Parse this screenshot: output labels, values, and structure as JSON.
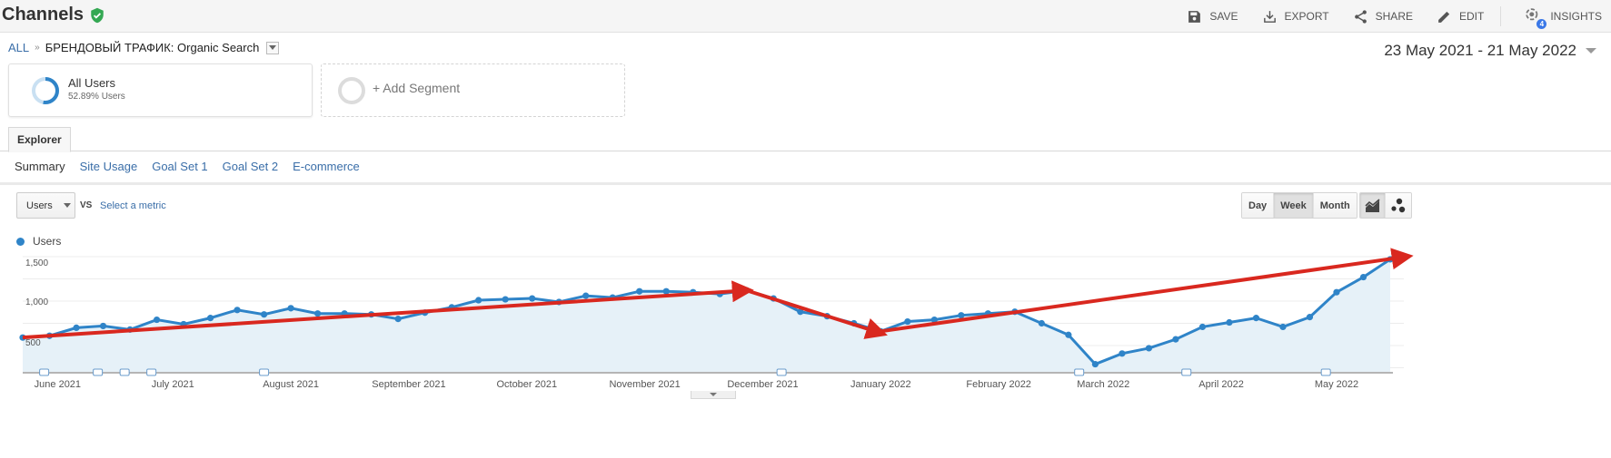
{
  "header": {
    "title": "Channels",
    "actions": [
      {
        "label": "SAVE",
        "icon": "save-icon"
      },
      {
        "label": "EXPORT",
        "icon": "export-icon"
      },
      {
        "label": "SHARE",
        "icon": "share-icon"
      },
      {
        "label": "EDIT",
        "icon": "edit-icon"
      },
      {
        "label": "INSIGHTS",
        "icon": "insights-icon",
        "badge": "4"
      }
    ]
  },
  "breadcrumb": {
    "root": "ALL",
    "separator": "»",
    "current": "БРЕНДОВЫЙ ТРАФИК: Organic Search"
  },
  "date_range": "23 May 2021 - 21 May 2022",
  "segments": {
    "active": {
      "name": "All Users",
      "sub": "52.89% Users"
    },
    "add_label": "+ Add Segment"
  },
  "tabs": [
    {
      "label": "Explorer",
      "active": true
    }
  ],
  "subtabs": [
    {
      "label": "Summary",
      "active": true
    },
    {
      "label": "Site Usage"
    },
    {
      "label": "Goal Set 1"
    },
    {
      "label": "Goal Set 2"
    },
    {
      "label": "E-commerce"
    }
  ],
  "chart_controls": {
    "metric": "Users",
    "vs": "VS",
    "select_metric": "Select a metric",
    "periods": [
      {
        "label": "Day"
      },
      {
        "label": "Week",
        "active": true
      },
      {
        "label": "Month"
      }
    ],
    "chart_types": [
      {
        "icon": "line-chart-icon",
        "active": true
      },
      {
        "icon": "motion-chart-icon"
      }
    ]
  },
  "colors": {
    "line": "#2f84c8",
    "area": "#e6f1f8",
    "arrow": "#d9281f",
    "link": "#3a6ea8"
  },
  "chart_data": {
    "type": "area",
    "title": "",
    "legend": [
      "Users"
    ],
    "xlabel": "",
    "ylabel": "",
    "ylim": [
      200,
      1600
    ],
    "yticks": [
      {
        "value": 500,
        "label": "500"
      },
      {
        "value": 1000,
        "label": "1,000"
      },
      {
        "value": 1500,
        "label": "1,500"
      }
    ],
    "grid": true,
    "x_tick_labels": [
      {
        "label": "June 2021",
        "index": 1.3
      },
      {
        "label": "July 2021",
        "index": 5.6
      },
      {
        "label": "August 2021",
        "index": 10.0
      },
      {
        "label": "September 2021",
        "index": 14.4
      },
      {
        "label": "October 2021",
        "index": 18.8
      },
      {
        "label": "November 2021",
        "index": 23.2
      },
      {
        "label": "December 2021",
        "index": 27.6
      },
      {
        "label": "January 2022",
        "index": 32.0
      },
      {
        "label": "February 2022",
        "index": 36.4
      },
      {
        "label": "March 2022",
        "index": 40.3
      },
      {
        "label": "April 2022",
        "index": 44.7
      },
      {
        "label": "May 2022",
        "index": 49.0
      }
    ],
    "annotation_markers": [
      0.8,
      2.8,
      3.8,
      4.8,
      9.0,
      28.3,
      39.4,
      43.4,
      48.6
    ],
    "series": [
      {
        "name": "Users",
        "values": [
          590,
          610,
          700,
          720,
          680,
          790,
          740,
          810,
          900,
          850,
          920,
          860,
          860,
          850,
          800,
          870,
          930,
          1010,
          1020,
          1030,
          990,
          1060,
          1040,
          1110,
          1110,
          1100,
          1080,
          1120,
          1030,
          880,
          830,
          750,
          660,
          770,
          790,
          840,
          860,
          880,
          750,
          620,
          290,
          410,
          470,
          570,
          710,
          760,
          810,
          710,
          820,
          1100,
          1270,
          1470
        ]
      }
    ],
    "trend_arrows": [
      {
        "from": {
          "index": 0,
          "value": 590
        },
        "to": {
          "index": 27,
          "value": 1120
        }
      },
      {
        "from": {
          "index": 27,
          "value": 1120
        },
        "to": {
          "index": 32,
          "value": 640
        }
      },
      {
        "from": {
          "index": 32,
          "value": 660
        },
        "to": {
          "index": 51.6,
          "value": 1500
        }
      }
    ]
  }
}
